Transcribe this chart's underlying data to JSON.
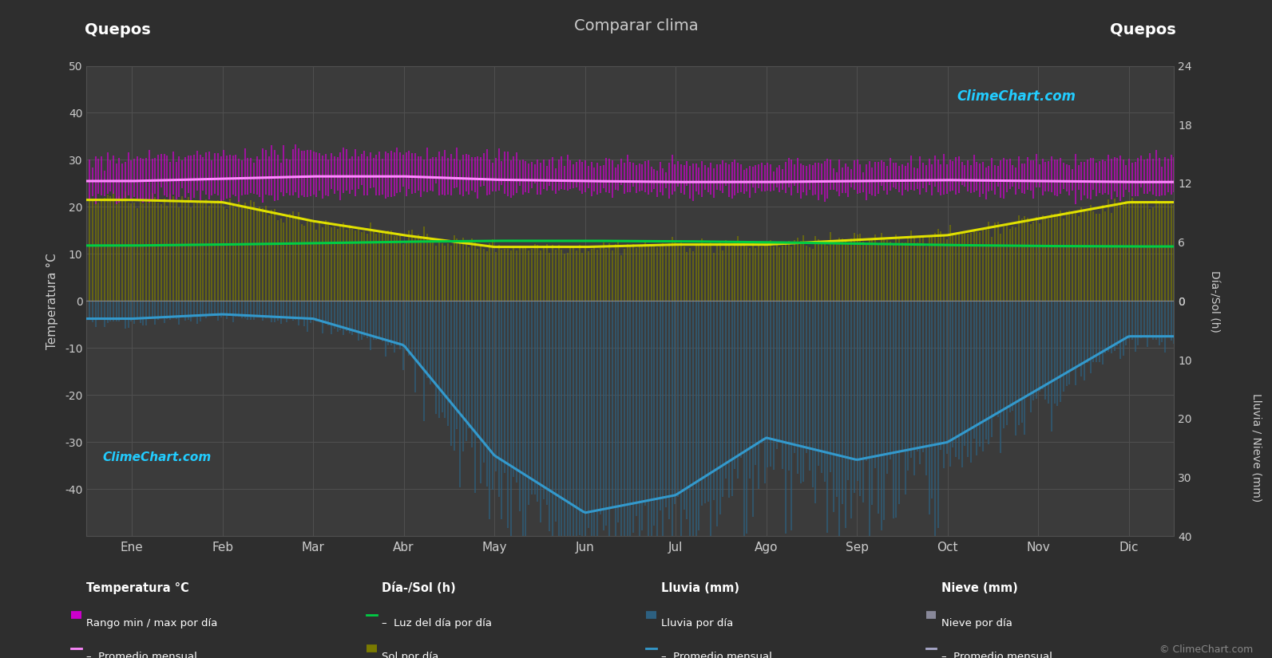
{
  "title": "Comparar clima",
  "location_left": "Quepos",
  "location_right": "Quepos",
  "background_color": "#2e2e2e",
  "plot_background": "#3b3b3b",
  "grid_color": "#505050",
  "text_color": "#cccccc",
  "months": [
    "Ene",
    "Feb",
    "Mar",
    "Abr",
    "May",
    "Jun",
    "Jul",
    "Ago",
    "Sep",
    "Oct",
    "Nov",
    "Dic"
  ],
  "ylim": [
    -50,
    50
  ],
  "temp_min_monthly": [
    22.0,
    22.0,
    22.5,
    23.0,
    23.0,
    23.0,
    23.0,
    23.0,
    23.0,
    23.0,
    23.0,
    22.5
  ],
  "temp_max_monthly": [
    30.0,
    31.0,
    31.5,
    31.5,
    30.5,
    29.5,
    29.0,
    29.0,
    29.5,
    29.5,
    29.5,
    30.0
  ],
  "temp_avg_monthly": [
    25.5,
    26.0,
    26.5,
    26.5,
    25.8,
    25.5,
    25.3,
    25.3,
    25.5,
    25.7,
    25.5,
    25.3
  ],
  "daylight_monthly": [
    11.8,
    12.0,
    12.3,
    12.6,
    12.8,
    12.8,
    12.7,
    12.5,
    12.2,
    11.9,
    11.7,
    11.6
  ],
  "sunshine_monthly": [
    21.5,
    21.0,
    17.0,
    14.0,
    11.5,
    11.5,
    12.0,
    12.0,
    13.0,
    14.0,
    17.5,
    21.0
  ],
  "rain_monthly_avg_mm": [
    40,
    30,
    40,
    100,
    350,
    480,
    440,
    310,
    360,
    320,
    200,
    80
  ],
  "rain_scale": 0.09375,
  "sun_scale": 2.0833,
  "colors": {
    "temp_fill": "#cc00cc",
    "temp_avg_line": "#ff88ff",
    "daylight_line": "#00cc44",
    "sunshine_fill": "#7a7a00",
    "sunshine_line": "#e0e000",
    "rain_fill": "#2d6080",
    "rain_line": "#3399cc",
    "snow_fill": "#888899",
    "snow_line": "#aaaacc"
  },
  "noise_seed": 42,
  "right_axis_sun": {
    "ticks": [
      0,
      6,
      12,
      18,
      24
    ],
    "label": "Día-/Sol (h)"
  },
  "right_axis_rain": {
    "ticks": [
      0,
      10,
      20,
      30,
      40
    ],
    "label": "Lluvia / Nieve (mm)"
  }
}
